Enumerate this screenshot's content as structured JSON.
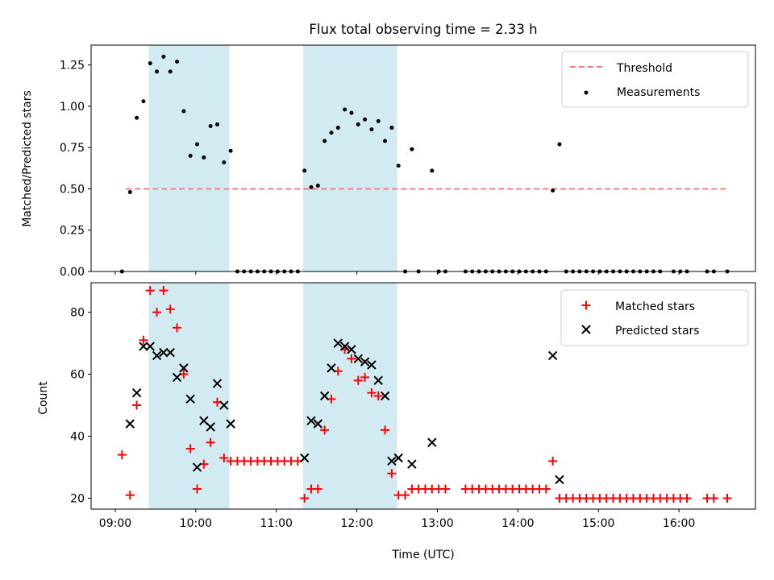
{
  "chart_data": [
    {
      "type": "scatter",
      "title": "Flux total observing time = 2.33 h",
      "ylabel": "Matched/Predicted stars",
      "xlabel": "",
      "ylim": [
        0,
        1.37
      ],
      "yticks": [
        0,
        0.25,
        0.5,
        0.75,
        1.0,
        1.25
      ],
      "ytick_labels": [
        "0.00",
        "0.25",
        "0.50",
        "0.75",
        "1.00",
        "1.25"
      ],
      "legend": [
        "Threshold",
        "Measurements"
      ],
      "legend_position": "top-right",
      "threshold": {
        "name": "Threshold",
        "value": 0.5,
        "x_start": "09:08",
        "x_end": "16:37",
        "color": "#f08080",
        "style": "dashed"
      },
      "shaded_regions": [
        {
          "start": "09:25",
          "end": "10:25"
        },
        {
          "start": "11:20",
          "end": "12:30"
        }
      ],
      "shaded_color": "#add8e6",
      "series": [
        {
          "name": "Measurements",
          "color": "#000000",
          "marker": "dot",
          "points": [
            {
              "x": "09:05",
              "y": 0.0
            },
            {
              "x": "09:11",
              "y": 0.48
            },
            {
              "x": "09:16",
              "y": 0.93
            },
            {
              "x": "09:21",
              "y": 1.03
            },
            {
              "x": "09:26",
              "y": 1.26
            },
            {
              "x": "09:31",
              "y": 1.21
            },
            {
              "x": "09:36",
              "y": 1.3
            },
            {
              "x": "09:41",
              "y": 1.21
            },
            {
              "x": "09:46",
              "y": 1.27
            },
            {
              "x": "09:51",
              "y": 0.97
            },
            {
              "x": "09:56",
              "y": 0.7
            },
            {
              "x": "10:01",
              "y": 0.77
            },
            {
              "x": "10:06",
              "y": 0.69
            },
            {
              "x": "10:11",
              "y": 0.88
            },
            {
              "x": "10:16",
              "y": 0.89
            },
            {
              "x": "10:21",
              "y": 0.66
            },
            {
              "x": "10:26",
              "y": 0.73
            },
            {
              "x": "10:31",
              "y": 0.0
            },
            {
              "x": "10:36",
              "y": 0.0
            },
            {
              "x": "10:41",
              "y": 0.0
            },
            {
              "x": "10:46",
              "y": 0.0
            },
            {
              "x": "10:51",
              "y": 0.0
            },
            {
              "x": "10:56",
              "y": 0.0
            },
            {
              "x": "11:01",
              "y": 0.0
            },
            {
              "x": "11:06",
              "y": 0.0
            },
            {
              "x": "11:11",
              "y": 0.0
            },
            {
              "x": "11:16",
              "y": 0.0
            },
            {
              "x": "11:21",
              "y": 0.61
            },
            {
              "x": "11:26",
              "y": 0.51
            },
            {
              "x": "11:31",
              "y": 0.52
            },
            {
              "x": "11:36",
              "y": 0.79
            },
            {
              "x": "11:41",
              "y": 0.84
            },
            {
              "x": "11:46",
              "y": 0.87
            },
            {
              "x": "11:51",
              "y": 0.98
            },
            {
              "x": "11:56",
              "y": 0.96
            },
            {
              "x": "12:01",
              "y": 0.89
            },
            {
              "x": "12:06",
              "y": 0.92
            },
            {
              "x": "12:11",
              "y": 0.86
            },
            {
              "x": "12:16",
              "y": 0.91
            },
            {
              "x": "12:21",
              "y": 0.79
            },
            {
              "x": "12:26",
              "y": 0.87
            },
            {
              "x": "12:31",
              "y": 0.64
            },
            {
              "x": "12:36",
              "y": 0.0
            },
            {
              "x": "12:41",
              "y": 0.74
            },
            {
              "x": "12:46",
              "y": 0.0
            },
            {
              "x": "12:56",
              "y": 0.61
            },
            {
              "x": "13:01",
              "y": 0.0
            },
            {
              "x": "13:06",
              "y": 0.0
            },
            {
              "x": "13:21",
              "y": 0.0
            },
            {
              "x": "13:26",
              "y": 0.0
            },
            {
              "x": "13:31",
              "y": 0.0
            },
            {
              "x": "13:36",
              "y": 0.0
            },
            {
              "x": "13:41",
              "y": 0.0
            },
            {
              "x": "13:46",
              "y": 0.0
            },
            {
              "x": "13:51",
              "y": 0.0
            },
            {
              "x": "13:56",
              "y": 0.0
            },
            {
              "x": "14:01",
              "y": 0.0
            },
            {
              "x": "14:06",
              "y": 0.0
            },
            {
              "x": "14:11",
              "y": 0.0
            },
            {
              "x": "14:16",
              "y": 0.0
            },
            {
              "x": "14:21",
              "y": 0.0
            },
            {
              "x": "14:26",
              "y": 0.49
            },
            {
              "x": "14:31",
              "y": 0.77
            },
            {
              "x": "14:36",
              "y": 0.0
            },
            {
              "x": "14:41",
              "y": 0.0
            },
            {
              "x": "14:46",
              "y": 0.0
            },
            {
              "x": "14:51",
              "y": 0.0
            },
            {
              "x": "14:56",
              "y": 0.0
            },
            {
              "x": "15:01",
              "y": 0.0
            },
            {
              "x": "15:06",
              "y": 0.0
            },
            {
              "x": "15:11",
              "y": 0.0
            },
            {
              "x": "15:16",
              "y": 0.0
            },
            {
              "x": "15:21",
              "y": 0.0
            },
            {
              "x": "15:26",
              "y": 0.0
            },
            {
              "x": "15:31",
              "y": 0.0
            },
            {
              "x": "15:36",
              "y": 0.0
            },
            {
              "x": "15:41",
              "y": 0.0
            },
            {
              "x": "15:46",
              "y": 0.0
            },
            {
              "x": "15:56",
              "y": 0.0
            },
            {
              "x": "16:01",
              "y": 0.0
            },
            {
              "x": "16:06",
              "y": 0.0
            },
            {
              "x": "16:21",
              "y": 0.0
            },
            {
              "x": "16:26",
              "y": 0.0
            },
            {
              "x": "16:36",
              "y": 0.0
            }
          ]
        }
      ]
    },
    {
      "type": "scatter",
      "title": "",
      "ylabel": "Count",
      "xlabel": "Time (UTC)",
      "ylim": [
        16.5,
        89.5
      ],
      "yticks": [
        20,
        40,
        60,
        80
      ],
      "ytick_labels": [
        "20",
        "40",
        "60",
        "80"
      ],
      "xlim": [
        "08:42",
        "16:57"
      ],
      "xticks": [
        "09:00",
        "10:00",
        "11:00",
        "12:00",
        "13:00",
        "14:00",
        "15:00",
        "16:00"
      ],
      "xtick_labels": [
        "09:00",
        "10:00",
        "11:00",
        "12:00",
        "13:00",
        "14:00",
        "15:00",
        "16:00"
      ],
      "legend": [
        "Matched stars",
        "Predicted stars"
      ],
      "legend_position": "top-right",
      "shaded_regions": [
        {
          "start": "09:25",
          "end": "10:25"
        },
        {
          "start": "11:20",
          "end": "12:30"
        }
      ],
      "shaded_color": "#add8e6",
      "series": [
        {
          "name": "Matched stars",
          "color": "#ff0000",
          "marker": "plus",
          "points": [
            {
              "x": "09:05",
              "y": 34
            },
            {
              "x": "09:11",
              "y": 21
            },
            {
              "x": "09:16",
              "y": 50
            },
            {
              "x": "09:21",
              "y": 71
            },
            {
              "x": "09:26",
              "y": 87
            },
            {
              "x": "09:31",
              "y": 80
            },
            {
              "x": "09:36",
              "y": 87
            },
            {
              "x": "09:41",
              "y": 81
            },
            {
              "x": "09:46",
              "y": 75
            },
            {
              "x": "09:51",
              "y": 60
            },
            {
              "x": "09:56",
              "y": 36
            },
            {
              "x": "10:01",
              "y": 23
            },
            {
              "x": "10:06",
              "y": 31
            },
            {
              "x": "10:11",
              "y": 38
            },
            {
              "x": "10:16",
              "y": 51
            },
            {
              "x": "10:21",
              "y": 33
            },
            {
              "x": "10:26",
              "y": 32
            },
            {
              "x": "10:31",
              "y": 32
            },
            {
              "x": "10:36",
              "y": 32
            },
            {
              "x": "10:41",
              "y": 32
            },
            {
              "x": "10:46",
              "y": 32
            },
            {
              "x": "10:51",
              "y": 32
            },
            {
              "x": "10:56",
              "y": 32
            },
            {
              "x": "11:01",
              "y": 32
            },
            {
              "x": "11:06",
              "y": 32
            },
            {
              "x": "11:11",
              "y": 32
            },
            {
              "x": "11:16",
              "y": 32
            },
            {
              "x": "11:21",
              "y": 20
            },
            {
              "x": "11:26",
              "y": 23
            },
            {
              "x": "11:31",
              "y": 23
            },
            {
              "x": "11:36",
              "y": 42
            },
            {
              "x": "11:41",
              "y": 52
            },
            {
              "x": "11:46",
              "y": 61
            },
            {
              "x": "11:51",
              "y": 68
            },
            {
              "x": "11:56",
              "y": 65
            },
            {
              "x": "12:01",
              "y": 58
            },
            {
              "x": "12:06",
              "y": 59
            },
            {
              "x": "12:11",
              "y": 54
            },
            {
              "x": "12:16",
              "y": 53
            },
            {
              "x": "12:21",
              "y": 42
            },
            {
              "x": "12:26",
              "y": 28
            },
            {
              "x": "12:31",
              "y": 21
            },
            {
              "x": "12:36",
              "y": 21
            },
            {
              "x": "12:41",
              "y": 23
            },
            {
              "x": "12:46",
              "y": 23
            },
            {
              "x": "12:51",
              "y": 23
            },
            {
              "x": "12:56",
              "y": 23
            },
            {
              "x": "13:01",
              "y": 23
            },
            {
              "x": "13:06",
              "y": 23
            },
            {
              "x": "13:21",
              "y": 23
            },
            {
              "x": "13:26",
              "y": 23
            },
            {
              "x": "13:31",
              "y": 23
            },
            {
              "x": "13:36",
              "y": 23
            },
            {
              "x": "13:41",
              "y": 23
            },
            {
              "x": "13:46",
              "y": 23
            },
            {
              "x": "13:51",
              "y": 23
            },
            {
              "x": "13:56",
              "y": 23
            },
            {
              "x": "14:01",
              "y": 23
            },
            {
              "x": "14:06",
              "y": 23
            },
            {
              "x": "14:11",
              "y": 23
            },
            {
              "x": "14:16",
              "y": 23
            },
            {
              "x": "14:21",
              "y": 23
            },
            {
              "x": "14:26",
              "y": 32
            },
            {
              "x": "14:31",
              "y": 20
            },
            {
              "x": "14:36",
              "y": 20
            },
            {
              "x": "14:41",
              "y": 20
            },
            {
              "x": "14:46",
              "y": 20
            },
            {
              "x": "14:51",
              "y": 20
            },
            {
              "x": "14:56",
              "y": 20
            },
            {
              "x": "15:01",
              "y": 20
            },
            {
              "x": "15:06",
              "y": 20
            },
            {
              "x": "15:11",
              "y": 20
            },
            {
              "x": "15:16",
              "y": 20
            },
            {
              "x": "15:21",
              "y": 20
            },
            {
              "x": "15:26",
              "y": 20
            },
            {
              "x": "15:31",
              "y": 20
            },
            {
              "x": "15:36",
              "y": 20
            },
            {
              "x": "15:41",
              "y": 20
            },
            {
              "x": "15:46",
              "y": 20
            },
            {
              "x": "15:51",
              "y": 20
            },
            {
              "x": "15:56",
              "y": 20
            },
            {
              "x": "16:01",
              "y": 20
            },
            {
              "x": "16:06",
              "y": 20
            },
            {
              "x": "16:21",
              "y": 20
            },
            {
              "x": "16:26",
              "y": 20
            },
            {
              "x": "16:36",
              "y": 20
            }
          ]
        },
        {
          "name": "Predicted stars",
          "color": "#000000",
          "marker": "x",
          "points": [
            {
              "x": "09:11",
              "y": 44
            },
            {
              "x": "09:16",
              "y": 54
            },
            {
              "x": "09:21",
              "y": 69
            },
            {
              "x": "09:26",
              "y": 69
            },
            {
              "x": "09:31",
              "y": 66
            },
            {
              "x": "09:36",
              "y": 67
            },
            {
              "x": "09:41",
              "y": 67
            },
            {
              "x": "09:46",
              "y": 59
            },
            {
              "x": "09:51",
              "y": 62
            },
            {
              "x": "09:56",
              "y": 52
            },
            {
              "x": "10:01",
              "y": 30
            },
            {
              "x": "10:06",
              "y": 45
            },
            {
              "x": "10:11",
              "y": 43
            },
            {
              "x": "10:16",
              "y": 57
            },
            {
              "x": "10:21",
              "y": 50
            },
            {
              "x": "10:26",
              "y": 44
            },
            {
              "x": "11:21",
              "y": 33
            },
            {
              "x": "11:26",
              "y": 45
            },
            {
              "x": "11:31",
              "y": 44
            },
            {
              "x": "11:36",
              "y": 53
            },
            {
              "x": "11:41",
              "y": 62
            },
            {
              "x": "11:46",
              "y": 70
            },
            {
              "x": "11:51",
              "y": 69
            },
            {
              "x": "11:56",
              "y": 68
            },
            {
              "x": "12:01",
              "y": 65
            },
            {
              "x": "12:06",
              "y": 64
            },
            {
              "x": "12:11",
              "y": 63
            },
            {
              "x": "12:16",
              "y": 58
            },
            {
              "x": "12:21",
              "y": 53
            },
            {
              "x": "12:26",
              "y": 32
            },
            {
              "x": "12:31",
              "y": 33
            },
            {
              "x": "12:41",
              "y": 31
            },
            {
              "x": "12:56",
              "y": 38
            },
            {
              "x": "14:26",
              "y": 66
            },
            {
              "x": "14:31",
              "y": 26
            }
          ]
        }
      ]
    }
  ]
}
